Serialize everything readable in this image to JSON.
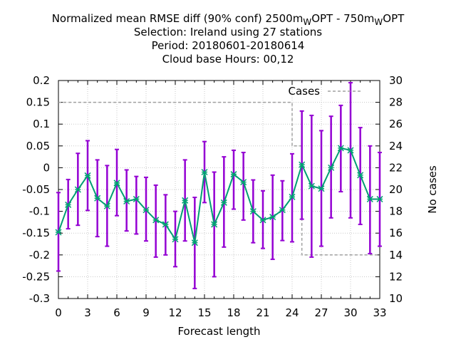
{
  "chart_data": {
    "type": "line",
    "title_lines": [
      {
        "parts": [
          {
            "t": "Normalized mean RMSE diff (90% conf) 2500m",
            "sub": false
          },
          {
            "t": "W",
            "sub": true
          },
          {
            "t": "OPT - 750m",
            "sub": false
          },
          {
            "t": "W",
            "sub": true
          },
          {
            "t": "OPT",
            "sub": false
          }
        ]
      },
      {
        "parts": [
          {
            "t": "Selection: Ireland using    27 stations",
            "sub": false
          }
        ]
      },
      {
        "parts": [
          {
            "t": "Period: 20180601-20180614",
            "sub": false
          }
        ]
      },
      {
        "parts": [
          {
            "t": "Cloud base   Hours: 00,12",
            "sub": false
          }
        ]
      }
    ],
    "xlabel": "Forecast length",
    "ylabel_right": "No cases",
    "xlim": [
      0,
      33
    ],
    "ylim": [
      -0.3,
      0.2
    ],
    "y2lim": [
      10,
      30
    ],
    "x_ticks": [
      0,
      3,
      6,
      9,
      12,
      15,
      18,
      21,
      24,
      27,
      30,
      33
    ],
    "y_ticks": [
      "0.2",
      "0.15",
      "0.1",
      "0.05",
      "0",
      "-0.05",
      "-0.1",
      "-0.15",
      "-0.2",
      "-0.25",
      "-0.3"
    ],
    "y2_ticks": [
      "30",
      "28",
      "26",
      "24",
      "22",
      "20",
      "18",
      "16",
      "14",
      "12",
      "10"
    ],
    "grid": true,
    "legend": {
      "position": "top-right",
      "entries": [
        "Cases"
      ]
    },
    "colors": {
      "line": "#009e73",
      "errorbar": "#9400d3",
      "cases": "#a0a0a0"
    },
    "series": [
      {
        "kind": "line_errorbars",
        "x": [
          0,
          1,
          2,
          3,
          4,
          5,
          6,
          7,
          8,
          9,
          10,
          11,
          12,
          13,
          14,
          15,
          16,
          17,
          18,
          19,
          20,
          21,
          22,
          23,
          24,
          25,
          26,
          27,
          28,
          29,
          30,
          31,
          32,
          33
        ],
        "y": [
          -0.148,
          -0.085,
          -0.05,
          -0.018,
          -0.07,
          -0.088,
          -0.035,
          -0.077,
          -0.072,
          -0.097,
          -0.12,
          -0.13,
          -0.164,
          -0.075,
          -0.172,
          -0.01,
          -0.13,
          -0.08,
          -0.015,
          -0.033,
          -0.1,
          -0.12,
          -0.113,
          -0.097,
          -0.067,
          0.007,
          -0.042,
          -0.048,
          0.0,
          0.045,
          0.04,
          -0.017,
          -0.072,
          -0.072
        ],
        "y_low": [
          -0.237,
          -0.14,
          -0.132,
          -0.098,
          -0.158,
          -0.18,
          -0.11,
          -0.145,
          -0.152,
          -0.168,
          -0.205,
          -0.2,
          -0.227,
          -0.168,
          -0.277,
          -0.08,
          -0.25,
          -0.182,
          -0.095,
          -0.12,
          -0.172,
          -0.185,
          -0.21,
          -0.167,
          -0.17,
          -0.118,
          -0.205,
          -0.18,
          -0.115,
          -0.055,
          -0.115,
          -0.13,
          -0.197,
          -0.18
        ],
        "y_high": [
          -0.057,
          -0.027,
          0.033,
          0.062,
          0.018,
          0.005,
          0.042,
          -0.005,
          -0.02,
          -0.022,
          -0.04,
          -0.062,
          -0.1,
          0.018,
          -0.068,
          0.06,
          -0.01,
          0.025,
          0.04,
          0.035,
          -0.028,
          -0.053,
          -0.017,
          -0.03,
          0.032,
          0.13,
          0.12,
          0.085,
          0.118,
          0.143,
          0.195,
          0.092,
          0.05,
          0.035
        ]
      },
      {
        "name": "Cases",
        "kind": "step_dashed",
        "x": [
          0,
          24,
          24,
          25,
          25,
          33
        ],
        "y": [
          28,
          28,
          24,
          24,
          14,
          14
        ]
      }
    ]
  }
}
